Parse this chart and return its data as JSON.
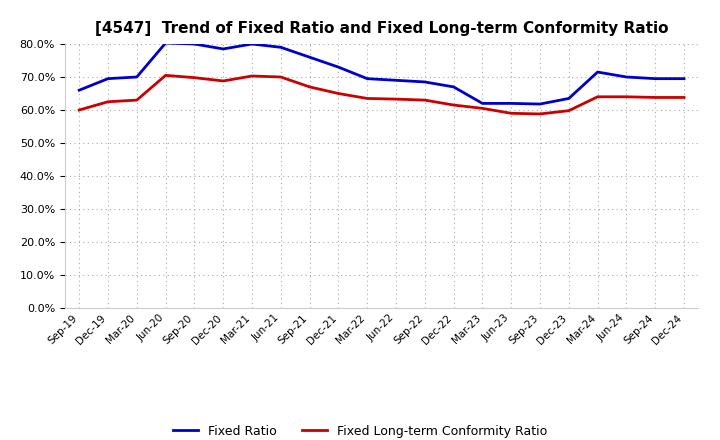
{
  "title": "[4547]  Trend of Fixed Ratio and Fixed Long-term Conformity Ratio",
  "x_labels": [
    "Sep-19",
    "Dec-19",
    "Mar-20",
    "Jun-20",
    "Sep-20",
    "Dec-20",
    "Mar-21",
    "Jun-21",
    "Sep-21",
    "Dec-21",
    "Mar-22",
    "Jun-22",
    "Sep-22",
    "Dec-22",
    "Mar-23",
    "Jun-23",
    "Sep-23",
    "Dec-23",
    "Mar-24",
    "Jun-24",
    "Sep-24",
    "Dec-24"
  ],
  "fixed_ratio": [
    0.66,
    0.695,
    0.7,
    0.803,
    0.8,
    0.785,
    0.8,
    0.79,
    0.76,
    0.73,
    0.695,
    0.69,
    0.685,
    0.67,
    0.62,
    0.62,
    0.618,
    0.635,
    0.715,
    0.7,
    0.695,
    0.695
  ],
  "fixed_lt_conformity": [
    0.6,
    0.625,
    0.63,
    0.705,
    0.698,
    0.688,
    0.703,
    0.7,
    0.67,
    0.65,
    0.635,
    0.633,
    0.63,
    0.615,
    0.605,
    0.59,
    0.588,
    0.598,
    0.64,
    0.64,
    0.638,
    0.638
  ],
  "ylim": [
    0.0,
    0.8
  ],
  "yticks": [
    0.0,
    0.1,
    0.2,
    0.3,
    0.4,
    0.5,
    0.6,
    0.7,
    0.8
  ],
  "line_color_fixed": "#0000CC",
  "line_color_lt": "#CC0000",
  "grid_color": "#AAAAAA",
  "background_color": "#FFFFFF",
  "legend_fixed": "Fixed Ratio",
  "legend_lt": "Fixed Long-term Conformity Ratio",
  "line_width": 2.0,
  "title_fontsize": 11
}
